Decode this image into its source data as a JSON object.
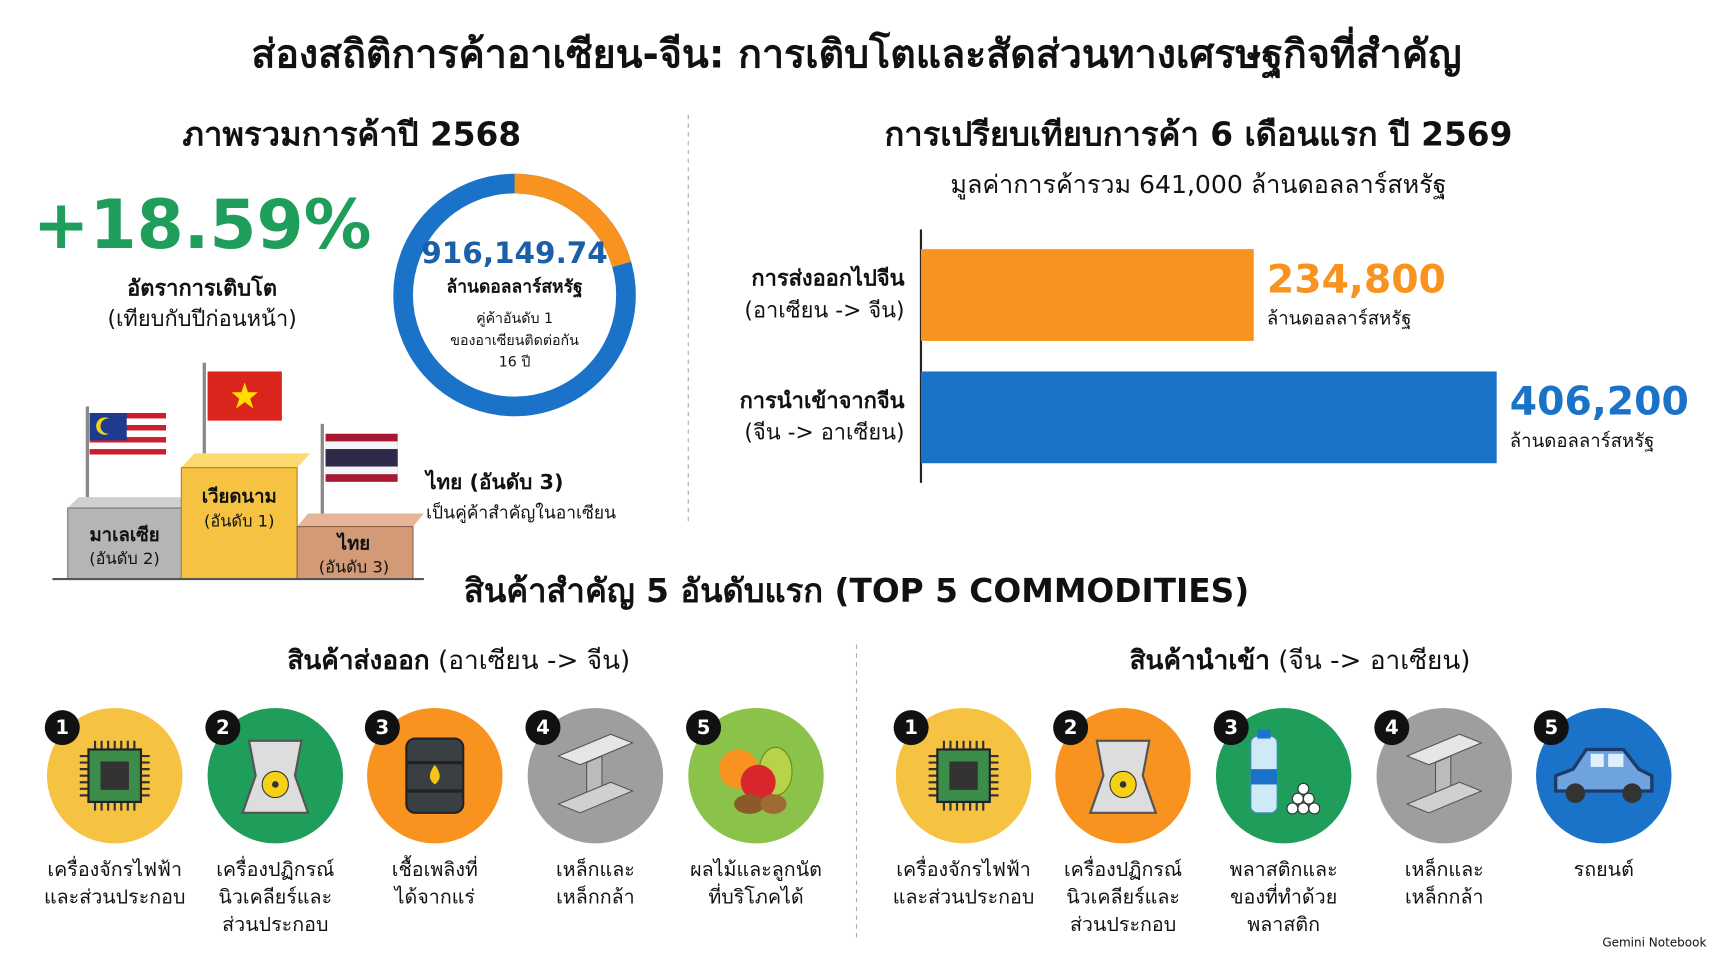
{
  "title": "ส่องสถิติการค้าอาเซียน-จีน: การเติบโตและสัดส่วนทางเศรษฐกิจที่สำคัญ",
  "overview": {
    "heading": "ภาพรวมการค้าปี 2568",
    "growth": "+18.59%",
    "growth_label": "อัตราการเติบโต",
    "growth_note": "(เทียบกับปีก่อนหน้า)",
    "trade_value": "916,149.74",
    "trade_unit": "ล้านดอลลาร์สหรัฐ",
    "trade_note": [
      "คู่ค้าอันดับ 1",
      "ของอาเซียนติดต่อกัน",
      "16 ปี"
    ],
    "podium": [
      {
        "country": "มาเลเซีย",
        "rank": "(อันดับ 2)"
      },
      {
        "country": "เวียดนาม",
        "rank": "(อันดับ 1)"
      },
      {
        "country": "ไทย",
        "rank": "(อันดับ 3)"
      }
    ],
    "thai_label": "ไทย (อันดับ 3)",
    "thai_note": "เป็นคู่ค้าสำคัญในอาเซียน"
  },
  "chart_data": {
    "type": "bar",
    "orientation": "horizontal",
    "title": "การเปรียบเทียบการค้า 6 เดือนแรก ปี 2569",
    "subtitle": "มูลค่าการค้ารวม 641,000 ล้านดอลลาร์สหรัฐ",
    "categories": [
      [
        "การส่งออกไปจีน",
        "(อาเซียน -> จีน)"
      ],
      [
        "การนำเข้าจากจีน",
        "(จีน -> อาเซียน)"
      ]
    ],
    "values": [
      234800,
      406200
    ],
    "value_labels": [
      "234,800",
      "406,200"
    ],
    "value_unit": "ล้านดอลลาร์สหรัฐ",
    "colors": [
      "#f7931e",
      "#1a73c8"
    ]
  },
  "commodities": {
    "title": "สินค้าสำคัญ 5 อันดับแรก (TOP 5 COMMODITIES)",
    "exports": {
      "heading": "สินค้าส่งออก",
      "direction": "(อาเซียน -> จีน)",
      "items": [
        {
          "rank": 1,
          "label": [
            "เครื่องจักรไฟฟ้า",
            "และส่วนประกอบ"
          ]
        },
        {
          "rank": 2,
          "label": [
            "เครื่องปฏิกรณ์",
            "นิวเคลียร์และ",
            "ส่วนประกอบ"
          ]
        },
        {
          "rank": 3,
          "label": [
            "เชื้อเพลิงที่",
            "ได้จากแร่"
          ]
        },
        {
          "rank": 4,
          "label": [
            "เหล็กและ",
            "เหล็กกล้า"
          ]
        },
        {
          "rank": 5,
          "label": [
            "ผลไม้และลูกนัต",
            "ที่บริโภคได้"
          ]
        }
      ]
    },
    "imports": {
      "heading": "สินค้านำเข้า",
      "direction": "(จีน -> อาเซียน)",
      "items": [
        {
          "rank": 1,
          "label": [
            "เครื่องจักรไฟฟ้า",
            "และส่วนประกอบ"
          ]
        },
        {
          "rank": 2,
          "label": [
            "เครื่องปฏิกรณ์",
            "นิวเคลียร์และ",
            "ส่วนประกอบ"
          ]
        },
        {
          "rank": 3,
          "label": [
            "พลาสติกและ",
            "ของที่ทำด้วย",
            "พลาสติก"
          ]
        },
        {
          "rank": 4,
          "label": [
            "เหล็กและ",
            "เหล็กกล้า"
          ]
        },
        {
          "rank": 5,
          "label": [
            "รถยนต์"
          ]
        }
      ]
    }
  },
  "footer": "Gemini Notebook"
}
